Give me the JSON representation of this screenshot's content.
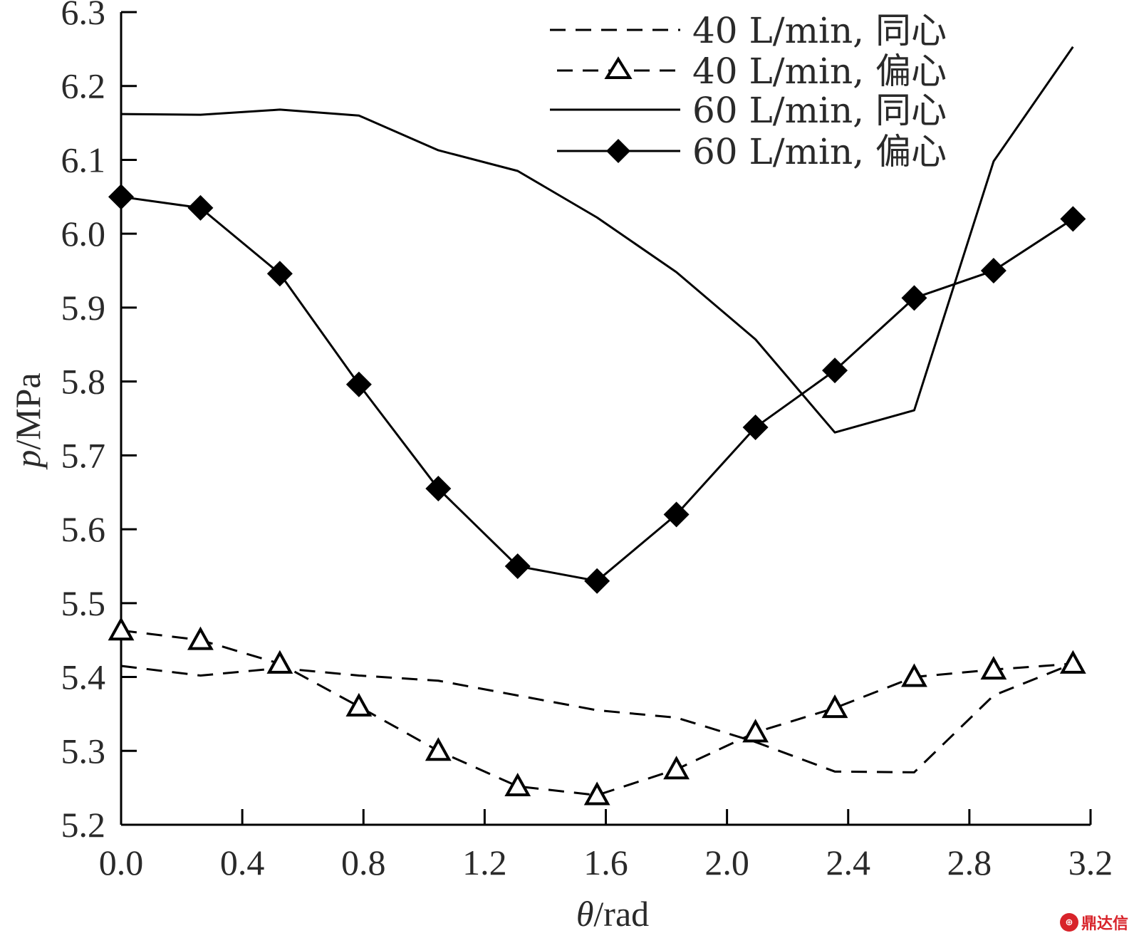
{
  "chart_data": {
    "type": "line",
    "xlabel_symbol": "θ",
    "xlabel_unit": "/rad",
    "ylabel_symbol": "p",
    "ylabel_unit": "/MPa",
    "xlim": [
      0.0,
      3.2
    ],
    "ylim": [
      5.2,
      6.3
    ],
    "xticks": [
      "0.0",
      "0.4",
      "0.8",
      "1.2",
      "1.6",
      "2.0",
      "2.4",
      "2.8",
      "3.2"
    ],
    "yticks": [
      "5.2",
      "5.3",
      "5.4",
      "5.5",
      "5.6",
      "5.7",
      "5.8",
      "5.9",
      "6.0",
      "6.1",
      "6.2",
      "6.3"
    ],
    "grid": false,
    "legend_position": "top-right",
    "x": [
      0.0,
      0.262,
      0.524,
      0.785,
      1.047,
      1.309,
      1.571,
      1.833,
      2.094,
      2.356,
      2.618,
      2.88,
      3.142
    ],
    "series": [
      {
        "name": "40 L/min, 同心",
        "style": "dashed",
        "marker": "none",
        "values": [
          5.415,
          5.402,
          5.412,
          5.402,
          5.395,
          5.375,
          5.355,
          5.345,
          5.312,
          5.272,
          5.271,
          5.375,
          5.418
        ]
      },
      {
        "name": "40 L/min, 偏心",
        "style": "dashed",
        "marker": "triangle-open",
        "values": [
          5.463,
          5.45,
          5.418,
          5.36,
          5.3,
          5.252,
          5.24,
          5.275,
          5.325,
          5.358,
          5.4,
          5.41,
          5.418
        ]
      },
      {
        "name": "60 L/min, 同心",
        "style": "solid",
        "marker": "none",
        "values": [
          6.162,
          6.161,
          6.168,
          6.16,
          6.113,
          6.085,
          6.022,
          5.948,
          5.857,
          5.731,
          5.761,
          6.098,
          6.253
        ]
      },
      {
        "name": "60 L/min, 偏心",
        "style": "solid",
        "marker": "diamond-filled",
        "values": [
          6.05,
          6.035,
          5.946,
          5.796,
          5.655,
          5.55,
          5.53,
          5.62,
          5.738,
          5.815,
          5.913,
          5.95,
          6.02
        ]
      }
    ]
  },
  "watermark": {
    "text": "鼎达信",
    "icon": "seal-icon"
  }
}
